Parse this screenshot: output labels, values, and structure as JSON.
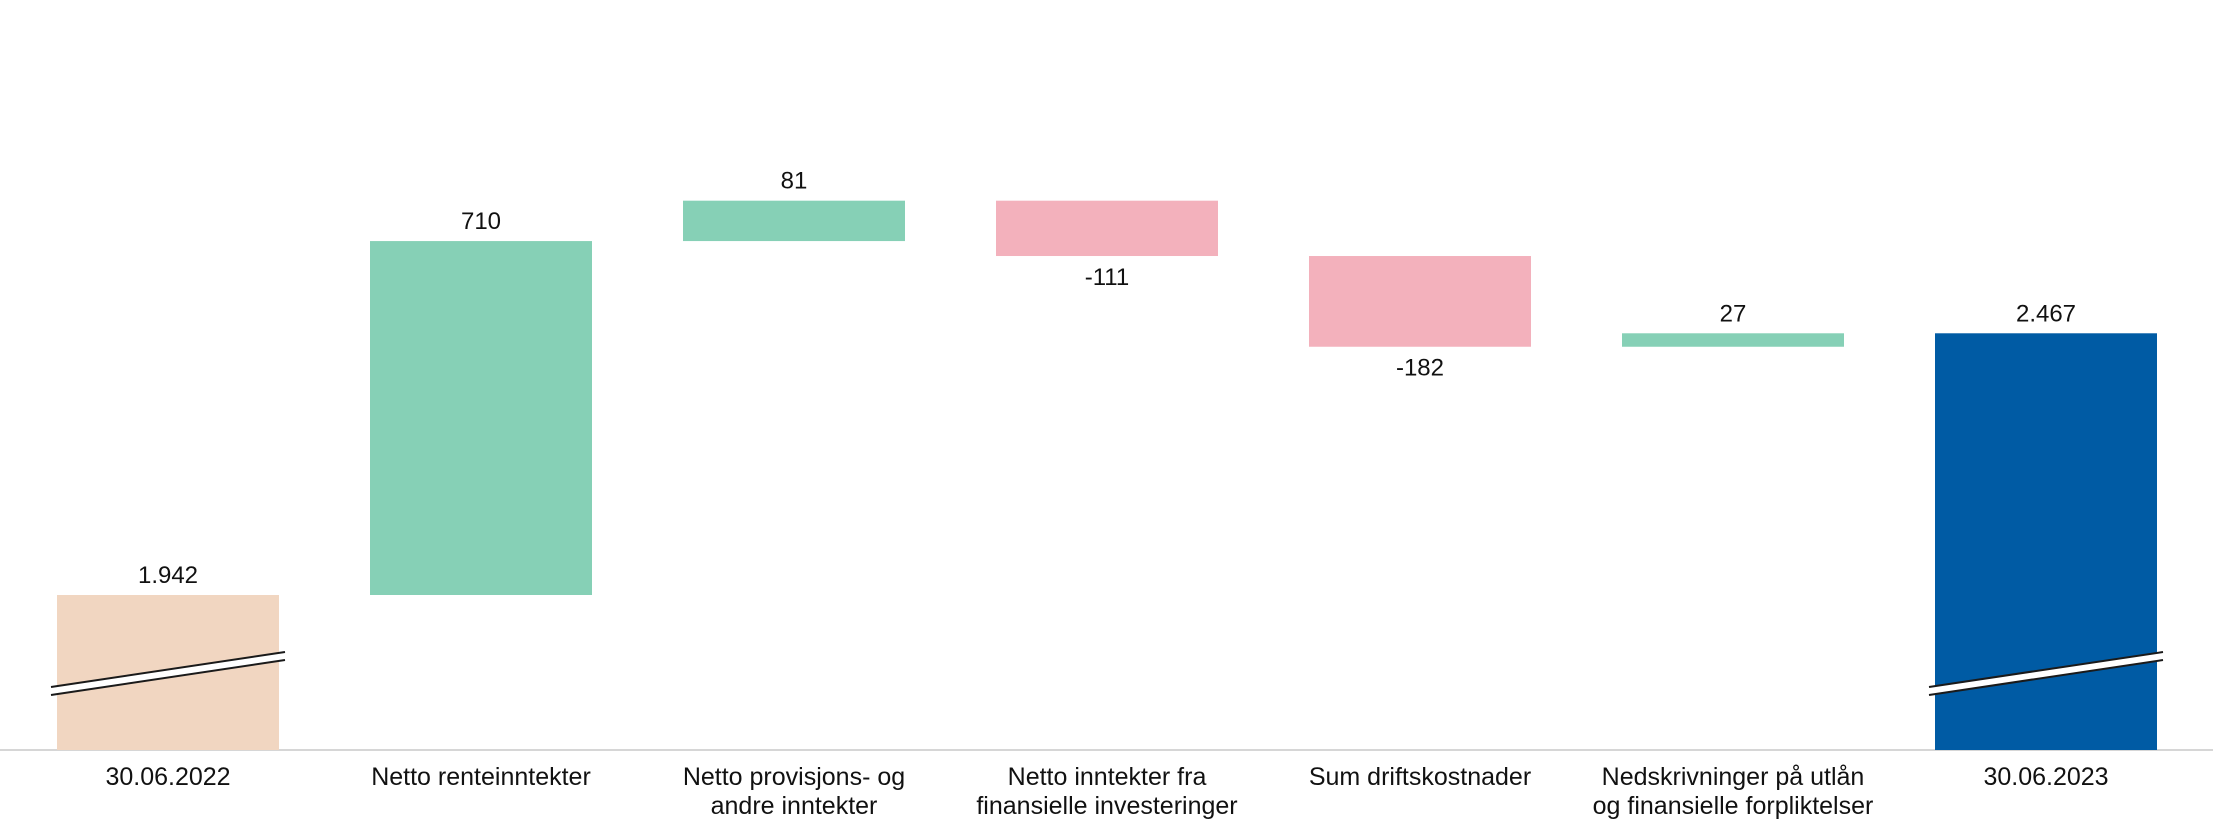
{
  "chart_data": {
    "type": "bar",
    "subtype": "waterfall",
    "title": "",
    "xlabel": "",
    "ylabel": "",
    "axis_break": true,
    "grid": false,
    "legend": "none",
    "colors": {
      "start": "#f1d6c1",
      "increase": "#86d0b6",
      "decrease": "#f3b1bc",
      "end": "#005ba4",
      "axis": "#c8c8c8",
      "break_line": "#1a1a1a"
    },
    "categories": [
      {
        "label_lines": [
          "30.06.2022"
        ]
      },
      {
        "label_lines": [
          "Netto renteinntekter"
        ]
      },
      {
        "label_lines": [
          "Netto provisjons- og",
          "andre inntekter"
        ]
      },
      {
        "label_lines": [
          "Netto inntekter fra",
          "finansielle investeringer"
        ]
      },
      {
        "label_lines": [
          "Sum driftskostnader"
        ]
      },
      {
        "label_lines": [
          "Nedskrivninger på utlån",
          "og finansielle forpliktelser"
        ]
      },
      {
        "label_lines": [
          "30.06.2023"
        ]
      }
    ],
    "values": [
      1942,
      710,
      81,
      -111,
      -182,
      27,
      2467
    ],
    "kinds": [
      "total",
      "delta",
      "delta",
      "delta",
      "delta",
      "delta",
      "total"
    ],
    "value_labels": [
      "1.942",
      "710",
      "81",
      "-111",
      "-182",
      "27",
      "2.467"
    ]
  }
}
